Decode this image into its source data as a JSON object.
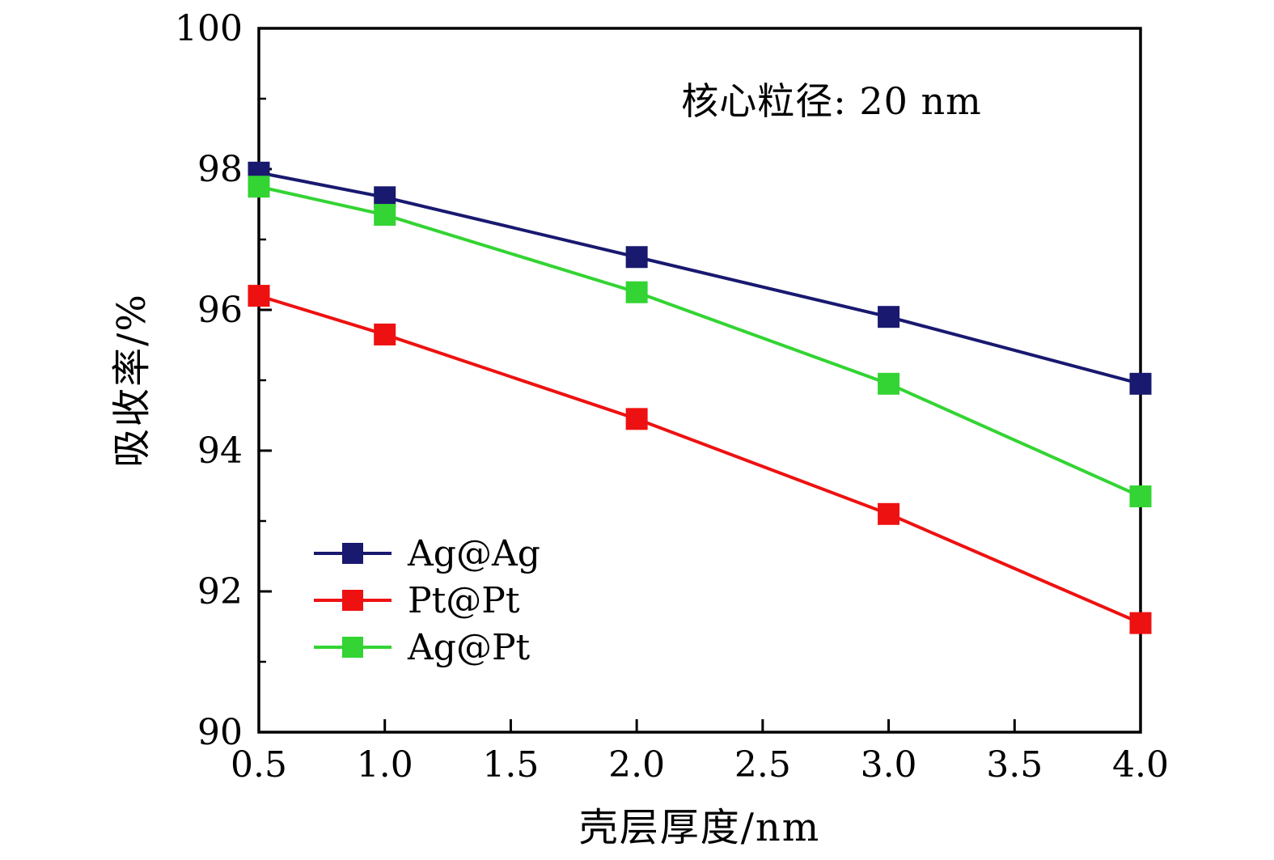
{
  "figure": {
    "annotation": "核心粒径: 20 nm"
  },
  "chart_data": {
    "type": "line",
    "title": "",
    "annotation": "核心粒径: 20 nm",
    "xlabel": "壳层厚度/nm",
    "ylabel": "吸收率/%",
    "xlim": [
      0.5,
      4.0
    ],
    "ylim": [
      90,
      100
    ],
    "grid": false,
    "legend_position": "lower-left",
    "marker": "square",
    "axis_color": "#000000",
    "x_tick_values": [
      0.5,
      1.0,
      1.5,
      2.0,
      2.5,
      3.0,
      3.5,
      4.0
    ],
    "x_tick_labels": [
      "0.5",
      "1.0",
      "1.5",
      "2.0",
      "2.5",
      "3.0",
      "3.5",
      "4.0"
    ],
    "y_tick_values": [
      90,
      92,
      94,
      96,
      98,
      100
    ],
    "y_tick_labels": [
      "90",
      "92",
      "94",
      "96",
      "98",
      "100"
    ],
    "y_minor_tick_values": [
      91,
      93,
      95,
      97,
      99
    ],
    "x": [
      0.5,
      1.0,
      2.0,
      3.0,
      4.0
    ],
    "series": [
      {
        "name": "Ag@Ag",
        "color": "#191970",
        "values": [
          97.95,
          97.6,
          96.75,
          95.9,
          94.95
        ]
      },
      {
        "name": "Pt@Pt",
        "color": "#ee1111",
        "values": [
          96.2,
          95.65,
          94.45,
          93.1,
          91.55
        ]
      },
      {
        "name": "Ag@Pt",
        "color": "#33d433",
        "values": [
          97.75,
          97.35,
          96.25,
          94.95,
          93.35
        ]
      }
    ]
  }
}
